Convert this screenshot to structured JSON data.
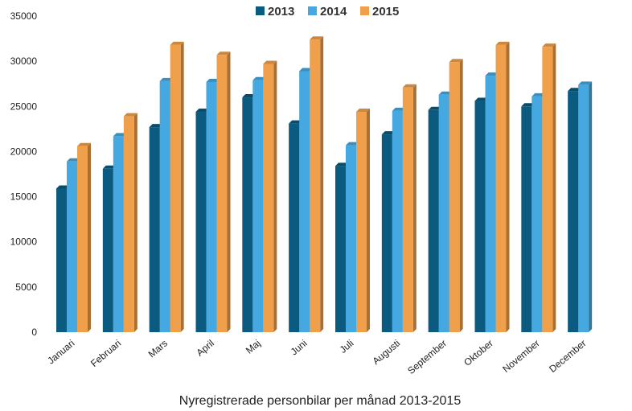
{
  "chart_data": {
    "type": "bar",
    "title": "Nyregistrerade personbilar per månad 2013-2015",
    "xlabel": "",
    "ylabel": "",
    "ylim": [
      0,
      35000
    ],
    "yticks": [
      0,
      5000,
      10000,
      15000,
      20000,
      25000,
      30000,
      35000
    ],
    "categories": [
      "Januari",
      "Februari",
      "Mars",
      "April",
      "Maj",
      "Juni",
      "Juli",
      "Augusti",
      "September",
      "Oktober",
      "November",
      "December"
    ],
    "series": [
      {
        "name": "2013",
        "color": "#0b5a80",
        "values": [
          15900,
          18100,
          22700,
          24400,
          26000,
          23100,
          18400,
          21900,
          24600,
          25600,
          25000,
          26700
        ]
      },
      {
        "name": "2014",
        "color": "#45a8e0",
        "values": [
          18900,
          21700,
          27800,
          27700,
          27900,
          28900,
          20700,
          24500,
          26300,
          28400,
          26100,
          27400
        ]
      },
      {
        "name": "2015",
        "color": "#f0a04b",
        "values": [
          20600,
          23900,
          31800,
          30700,
          29700,
          32400,
          24400,
          27100,
          29900,
          31800,
          31600,
          null
        ]
      }
    ],
    "legend_position": "top-center",
    "grid": false
  }
}
